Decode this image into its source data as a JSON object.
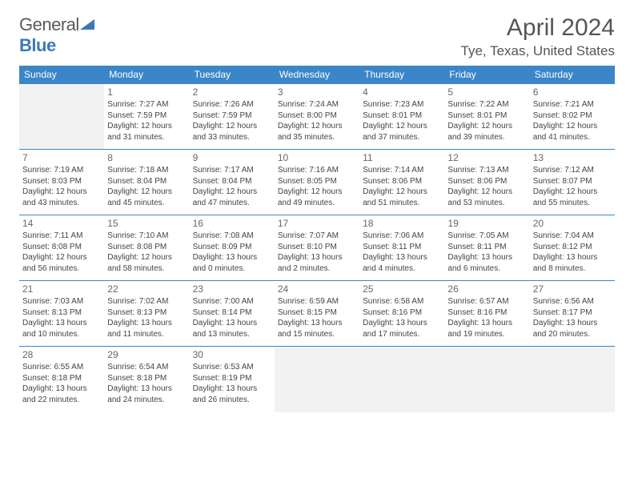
{
  "logo": {
    "text1": "General",
    "text2": "Blue"
  },
  "title": "April 2024",
  "location": "Tye, Texas, United States",
  "days": [
    "Sunday",
    "Monday",
    "Tuesday",
    "Wednesday",
    "Thursday",
    "Friday",
    "Saturday"
  ],
  "colors": {
    "header_bg": "#3a86c8",
    "header_text": "#ffffff",
    "text": "#444444",
    "title": "#555555",
    "empty_bg": "#f2f2f2"
  },
  "weeks": [
    [
      null,
      {
        "n": "1",
        "sr": "Sunrise: 7:27 AM",
        "ss": "Sunset: 7:59 PM",
        "d1": "Daylight: 12 hours",
        "d2": "and 31 minutes."
      },
      {
        "n": "2",
        "sr": "Sunrise: 7:26 AM",
        "ss": "Sunset: 7:59 PM",
        "d1": "Daylight: 12 hours",
        "d2": "and 33 minutes."
      },
      {
        "n": "3",
        "sr": "Sunrise: 7:24 AM",
        "ss": "Sunset: 8:00 PM",
        "d1": "Daylight: 12 hours",
        "d2": "and 35 minutes."
      },
      {
        "n": "4",
        "sr": "Sunrise: 7:23 AM",
        "ss": "Sunset: 8:01 PM",
        "d1": "Daylight: 12 hours",
        "d2": "and 37 minutes."
      },
      {
        "n": "5",
        "sr": "Sunrise: 7:22 AM",
        "ss": "Sunset: 8:01 PM",
        "d1": "Daylight: 12 hours",
        "d2": "and 39 minutes."
      },
      {
        "n": "6",
        "sr": "Sunrise: 7:21 AM",
        "ss": "Sunset: 8:02 PM",
        "d1": "Daylight: 12 hours",
        "d2": "and 41 minutes."
      }
    ],
    [
      {
        "n": "7",
        "sr": "Sunrise: 7:19 AM",
        "ss": "Sunset: 8:03 PM",
        "d1": "Daylight: 12 hours",
        "d2": "and 43 minutes."
      },
      {
        "n": "8",
        "sr": "Sunrise: 7:18 AM",
        "ss": "Sunset: 8:04 PM",
        "d1": "Daylight: 12 hours",
        "d2": "and 45 minutes."
      },
      {
        "n": "9",
        "sr": "Sunrise: 7:17 AM",
        "ss": "Sunset: 8:04 PM",
        "d1": "Daylight: 12 hours",
        "d2": "and 47 minutes."
      },
      {
        "n": "10",
        "sr": "Sunrise: 7:16 AM",
        "ss": "Sunset: 8:05 PM",
        "d1": "Daylight: 12 hours",
        "d2": "and 49 minutes."
      },
      {
        "n": "11",
        "sr": "Sunrise: 7:14 AM",
        "ss": "Sunset: 8:06 PM",
        "d1": "Daylight: 12 hours",
        "d2": "and 51 minutes."
      },
      {
        "n": "12",
        "sr": "Sunrise: 7:13 AM",
        "ss": "Sunset: 8:06 PM",
        "d1": "Daylight: 12 hours",
        "d2": "and 53 minutes."
      },
      {
        "n": "13",
        "sr": "Sunrise: 7:12 AM",
        "ss": "Sunset: 8:07 PM",
        "d1": "Daylight: 12 hours",
        "d2": "and 55 minutes."
      }
    ],
    [
      {
        "n": "14",
        "sr": "Sunrise: 7:11 AM",
        "ss": "Sunset: 8:08 PM",
        "d1": "Daylight: 12 hours",
        "d2": "and 56 minutes."
      },
      {
        "n": "15",
        "sr": "Sunrise: 7:10 AM",
        "ss": "Sunset: 8:08 PM",
        "d1": "Daylight: 12 hours",
        "d2": "and 58 minutes."
      },
      {
        "n": "16",
        "sr": "Sunrise: 7:08 AM",
        "ss": "Sunset: 8:09 PM",
        "d1": "Daylight: 13 hours",
        "d2": "and 0 minutes."
      },
      {
        "n": "17",
        "sr": "Sunrise: 7:07 AM",
        "ss": "Sunset: 8:10 PM",
        "d1": "Daylight: 13 hours",
        "d2": "and 2 minutes."
      },
      {
        "n": "18",
        "sr": "Sunrise: 7:06 AM",
        "ss": "Sunset: 8:11 PM",
        "d1": "Daylight: 13 hours",
        "d2": "and 4 minutes."
      },
      {
        "n": "19",
        "sr": "Sunrise: 7:05 AM",
        "ss": "Sunset: 8:11 PM",
        "d1": "Daylight: 13 hours",
        "d2": "and 6 minutes."
      },
      {
        "n": "20",
        "sr": "Sunrise: 7:04 AM",
        "ss": "Sunset: 8:12 PM",
        "d1": "Daylight: 13 hours",
        "d2": "and 8 minutes."
      }
    ],
    [
      {
        "n": "21",
        "sr": "Sunrise: 7:03 AM",
        "ss": "Sunset: 8:13 PM",
        "d1": "Daylight: 13 hours",
        "d2": "and 10 minutes."
      },
      {
        "n": "22",
        "sr": "Sunrise: 7:02 AM",
        "ss": "Sunset: 8:13 PM",
        "d1": "Daylight: 13 hours",
        "d2": "and 11 minutes."
      },
      {
        "n": "23",
        "sr": "Sunrise: 7:00 AM",
        "ss": "Sunset: 8:14 PM",
        "d1": "Daylight: 13 hours",
        "d2": "and 13 minutes."
      },
      {
        "n": "24",
        "sr": "Sunrise: 6:59 AM",
        "ss": "Sunset: 8:15 PM",
        "d1": "Daylight: 13 hours",
        "d2": "and 15 minutes."
      },
      {
        "n": "25",
        "sr": "Sunrise: 6:58 AM",
        "ss": "Sunset: 8:16 PM",
        "d1": "Daylight: 13 hours",
        "d2": "and 17 minutes."
      },
      {
        "n": "26",
        "sr": "Sunrise: 6:57 AM",
        "ss": "Sunset: 8:16 PM",
        "d1": "Daylight: 13 hours",
        "d2": "and 19 minutes."
      },
      {
        "n": "27",
        "sr": "Sunrise: 6:56 AM",
        "ss": "Sunset: 8:17 PM",
        "d1": "Daylight: 13 hours",
        "d2": "and 20 minutes."
      }
    ],
    [
      {
        "n": "28",
        "sr": "Sunrise: 6:55 AM",
        "ss": "Sunset: 8:18 PM",
        "d1": "Daylight: 13 hours",
        "d2": "and 22 minutes."
      },
      {
        "n": "29",
        "sr": "Sunrise: 6:54 AM",
        "ss": "Sunset: 8:18 PM",
        "d1": "Daylight: 13 hours",
        "d2": "and 24 minutes."
      },
      {
        "n": "30",
        "sr": "Sunrise: 6:53 AM",
        "ss": "Sunset: 8:19 PM",
        "d1": "Daylight: 13 hours",
        "d2": "and 26 minutes."
      },
      null,
      null,
      null,
      null
    ]
  ]
}
